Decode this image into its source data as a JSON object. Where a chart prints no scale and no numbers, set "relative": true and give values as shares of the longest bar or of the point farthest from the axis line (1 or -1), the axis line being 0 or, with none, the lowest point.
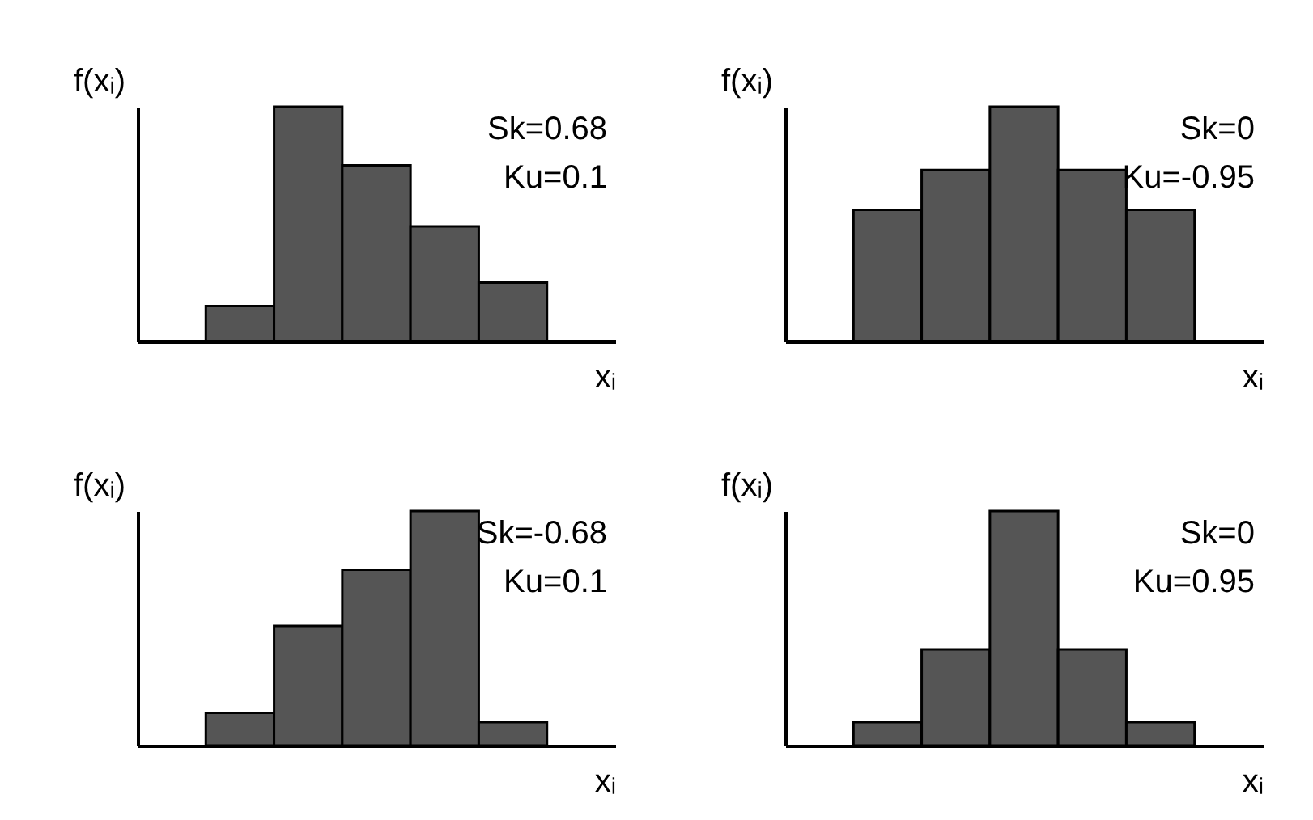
{
  "chart_data": [
    {
      "type": "bar",
      "relative": true,
      "xlabel": "xᵢ",
      "ylabel": "f(xᵢ)",
      "color": "#555555",
      "categories": [
        null,
        null,
        null,
        null,
        null
      ],
      "values": [
        0.15,
        1,
        0.75,
        0.49,
        0.25
      ],
      "annotations": [
        "Sk=0.68",
        "Ku=0.1"
      ]
    },
    {
      "type": "bar",
      "relative": true,
      "xlabel": "xᵢ",
      "ylabel": "f(xᵢ)",
      "color": "#555555",
      "categories": [
        null,
        null,
        null,
        null,
        null
      ],
      "values": [
        0.56,
        0.73,
        1,
        0.73,
        0.56
      ],
      "annotations": [
        "Sk=0",
        "Ku=-0.95"
      ]
    },
    {
      "type": "bar",
      "relative": true,
      "xlabel": "xᵢ",
      "ylabel": "f(xᵢ)",
      "color": "#555555",
      "categories": [
        null,
        null,
        null,
        null,
        null
      ],
      "values": [
        0.14,
        0.51,
        0.75,
        1,
        0.1
      ],
      "annotations": [
        "Sk=-0.68",
        "Ku=0.1"
      ]
    },
    {
      "type": "bar",
      "relative": true,
      "xlabel": "xᵢ",
      "ylabel": "f(xᵢ)",
      "color": "#555555",
      "categories": [
        null,
        null,
        null,
        null,
        null
      ],
      "values": [
        0.1,
        0.41,
        1,
        0.41,
        0.1
      ],
      "annotations": [
        "Sk=0",
        "Ku=0.95"
      ]
    }
  ]
}
